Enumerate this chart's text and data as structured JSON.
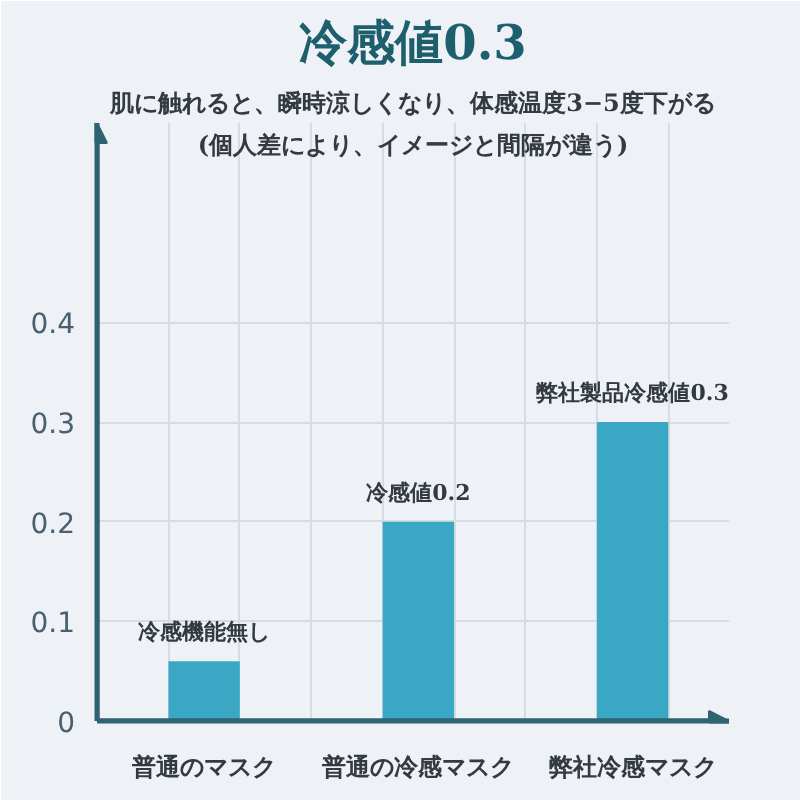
{
  "chart_data": {
    "type": "bar",
    "title": "冷感値0.3",
    "subtitle": "肌に触れると、瞬時涼しくなり、体感温度3−5度下がる",
    "annotations": [
      "(個人差により、イメージと間隔が違う)"
    ],
    "categories": [
      "普通のマスク",
      "普通の冷感マスク",
      "弊社冷感マスク"
    ],
    "values": [
      0.06,
      0.2,
      0.3
    ],
    "value_labels": [
      "冷感機能無し",
      "冷感値0.2",
      "弊社製品冷感値0.3"
    ],
    "color": "#3aa8c4",
    "ylim": [
      0,
      0.6
    ],
    "yticks": [
      0,
      0.1,
      0.2,
      0.3,
      0.4
    ],
    "grid": true
  }
}
